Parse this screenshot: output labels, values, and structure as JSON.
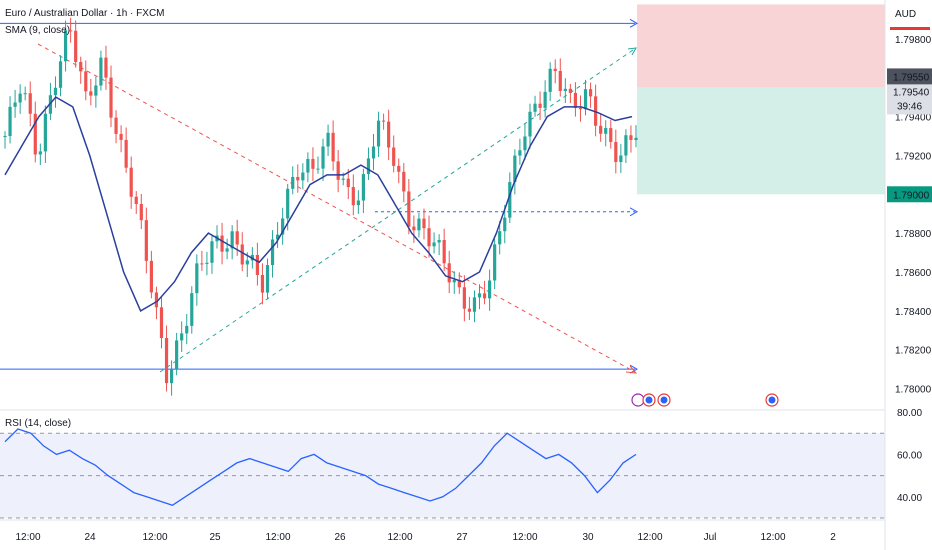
{
  "header": {
    "title": "Euro / Australian Dollar · 1h · FXCM",
    "sma_label": "SMA (9, close)",
    "rsi_label": "RSI (14, close)",
    "currency": "AUD"
  },
  "price_tags": {
    "stop": "1.79550",
    "current": "1.79540",
    "countdown": "39:46",
    "target": "1.79000"
  },
  "colors": {
    "up": "#26a69a",
    "down": "#ef5350",
    "sma": "#2a3f9d",
    "rsi": "#2962ff",
    "stop_zone": "#f9d4d6",
    "target_zone": "#d4eee8",
    "hline": "#2962ff"
  },
  "chart_data": [
    {
      "type": "candlestick",
      "title": "Euro / Australian Dollar · 1h · FXCM",
      "symbol": "EURAUD",
      "ylim": [
        1.779,
        1.8
      ],
      "y_ticks": [
        "1.78000",
        "1.78200",
        "1.78400",
        "1.78600",
        "1.78800",
        "1.79000",
        "1.79200",
        "1.79400",
        "1.79540",
        "1.79550",
        "1.79800"
      ],
      "x_ticks": [
        "12:00",
        "24",
        "12:00",
        "25",
        "12:00",
        "26",
        "12:00",
        "27",
        "12:00",
        "30",
        "12:00",
        "Jul",
        "12:00",
        "2"
      ],
      "price_path": [
        1.793,
        1.7955,
        1.792,
        1.796,
        1.7985,
        1.7945,
        1.797,
        1.793,
        1.7895,
        1.7855,
        1.781,
        1.783,
        1.786,
        1.7875,
        1.788,
        1.7865,
        1.785,
        1.789,
        1.7915,
        1.791,
        1.7925,
        1.7905,
        1.79,
        1.7935,
        1.792,
        1.789,
        1.788,
        1.7865,
        1.785,
        1.7845,
        1.7855,
        1.7895,
        1.7935,
        1.795,
        1.796,
        1.7945,
        1.7955,
        1.793,
        1.7915,
        1.7935
      ],
      "series": [
        {
          "name": "SMA (9, close)",
          "values": [
            1.791,
            1.7925,
            1.794,
            1.795,
            1.7945,
            1.792,
            1.789,
            1.786,
            1.784,
            1.7845,
            1.7855,
            1.787,
            1.788,
            1.7875,
            1.787,
            1.7865,
            1.7875,
            1.789,
            1.7905,
            1.791,
            1.791,
            1.7915,
            1.791,
            1.7895,
            1.788,
            1.787,
            1.7858,
            1.7855,
            1.786,
            1.788,
            1.7905,
            1.7925,
            1.794,
            1.7945,
            1.7945,
            1.7942,
            1.7938,
            1.794
          ]
        }
      ],
      "zones": {
        "stop_top": 1.799,
        "entry": 1.7955,
        "target": 1.79
      },
      "lines": {
        "upper": 1.7988,
        "lower": 1.781,
        "mid_dashed": 1.7891
      }
    },
    {
      "type": "line",
      "title": "RSI (14, close)",
      "ylim": [
        30,
        80
      ],
      "y_ticks": [
        "80.00",
        "60.00",
        "40.00"
      ],
      "bands": [
        70,
        50,
        30
      ],
      "series": [
        {
          "name": "RSI (14, close)",
          "values": [
            66,
            72,
            70,
            64,
            60,
            62,
            58,
            55,
            50,
            46,
            42,
            40,
            38,
            36,
            40,
            44,
            48,
            52,
            56,
            58,
            56,
            54,
            52,
            58,
            60,
            56,
            54,
            52,
            50,
            46,
            44,
            42,
            40,
            38,
            40,
            44,
            50,
            56,
            64,
            70,
            66,
            62,
            58,
            60,
            56,
            50,
            42,
            48,
            56,
            60
          ]
        }
      ]
    }
  ]
}
